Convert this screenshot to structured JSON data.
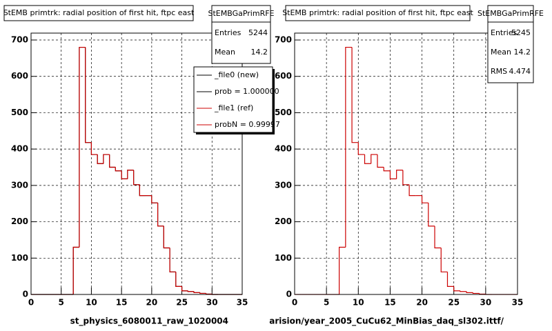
{
  "chart_data": [
    {
      "type": "histogram",
      "title": "StEMB primtrk: radial position of first hit, ftpc east",
      "x_label": "st_physics_6080011_raw_1020004",
      "bins": [
        0,
        1,
        2,
        3,
        4,
        5,
        6,
        7,
        8,
        9,
        10,
        11,
        12,
        13,
        14,
        15,
        16,
        17,
        18,
        19,
        20,
        21,
        22,
        23,
        24,
        25,
        26,
        27,
        28,
        29,
        30,
        31,
        32,
        33,
        34,
        35
      ],
      "series": [
        {
          "name": "_file0 (new)",
          "color": "#000000",
          "values": [
            0,
            0,
            0,
            0,
            0,
            0,
            0,
            130,
            680,
            418,
            385,
            360,
            385,
            350,
            340,
            318,
            342,
            302,
            272,
            272,
            252,
            188,
            128,
            62,
            22,
            10,
            8,
            5,
            3,
            1,
            0,
            0,
            0,
            0,
            0
          ]
        },
        {
          "name": "_file1 (ref)",
          "color": "#cc0000",
          "values": [
            0,
            0,
            0,
            0,
            0,
            0,
            0,
            130,
            680,
            418,
            385,
            360,
            385,
            350,
            340,
            318,
            342,
            302,
            272,
            272,
            252,
            188,
            128,
            62,
            22,
            10,
            8,
            5,
            3,
            1,
            0,
            0,
            0,
            0,
            0
          ]
        }
      ],
      "annotations": [
        "prob = 1.000000",
        "probN = 0.99997"
      ],
      "stats": {
        "title": "StEMBGaPrimRFE",
        "rows": [
          {
            "label": "Entries",
            "value": 5244
          },
          {
            "label": "Mean",
            "value": 14.2
          }
        ]
      },
      "xlim": [
        0,
        35
      ],
      "xticks": [
        0,
        5,
        10,
        15,
        20,
        25,
        30,
        35
      ],
      "ylim": [
        0,
        719
      ],
      "yticks": [
        0,
        100,
        200,
        300,
        400,
        500,
        600,
        700
      ],
      "grid": true
    },
    {
      "type": "histogram",
      "title": "StEMB primtrk: radial position of first hit, ftpc east",
      "x_label": "arision/year_2005_CuCu62_MinBias_daq_sl302.ittf/",
      "bins": [
        0,
        1,
        2,
        3,
        4,
        5,
        6,
        7,
        8,
        9,
        10,
        11,
        12,
        13,
        14,
        15,
        16,
        17,
        18,
        19,
        20,
        21,
        22,
        23,
        24,
        25,
        26,
        27,
        28,
        29,
        30,
        31,
        32,
        33,
        34,
        35
      ],
      "series": [
        {
          "color": "#cc0000",
          "values": [
            0,
            0,
            0,
            0,
            0,
            0,
            0,
            130,
            680,
            418,
            385,
            360,
            385,
            350,
            340,
            318,
            342,
            302,
            272,
            272,
            252,
            188,
            128,
            62,
            22,
            10,
            8,
            5,
            3,
            1,
            0,
            0,
            0,
            0,
            0
          ]
        }
      ],
      "stats": {
        "title": "StEMBGaPrimRFE",
        "rows": [
          {
            "label": "Entries",
            "value": 5245
          },
          {
            "label": "Mean",
            "value": 14.2
          },
          {
            "label": "RMS",
            "value": 4.474
          }
        ]
      },
      "xlim": [
        0,
        35
      ],
      "xticks": [
        0,
        5,
        10,
        15,
        20,
        25,
        30,
        35
      ],
      "ylim": [
        0,
        719
      ],
      "yticks": [
        0,
        100,
        200,
        300,
        400,
        500,
        600,
        700
      ],
      "grid": true
    }
  ]
}
